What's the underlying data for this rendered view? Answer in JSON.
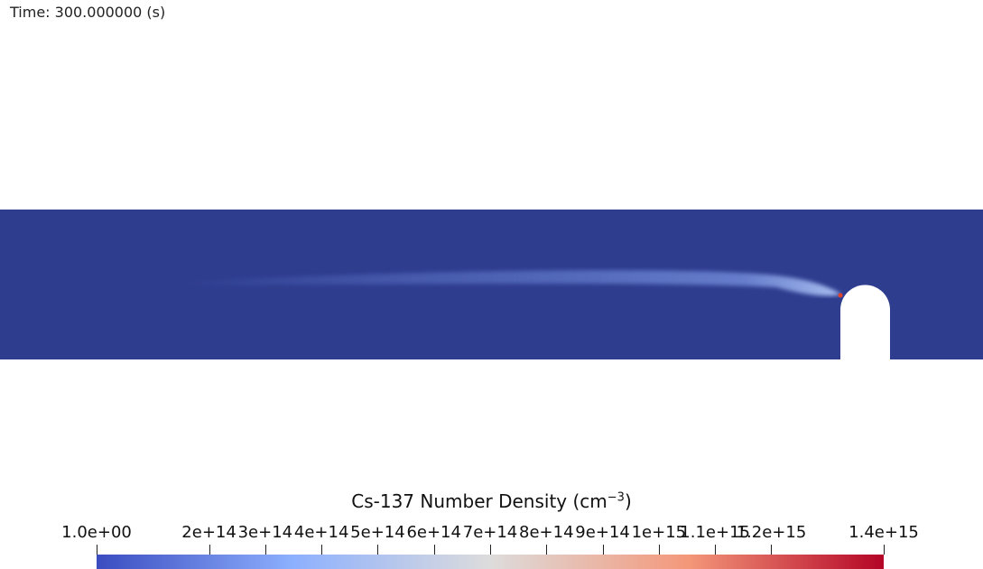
{
  "time_label": "Time: 300.000000 (s)",
  "field": {
    "background_color": "#2f3d8f",
    "plume_color": "#5a72c4",
    "source_color": "#e0432b",
    "obstacle_color": "#ffffff"
  },
  "colorbar": {
    "title_main": "Cs-137 Number Density (cm",
    "title_exp": "−3",
    "title_end": ")",
    "min": 1.0,
    "max": 1400000000000000.0,
    "colors": [
      "#3b4cc0",
      "#8db0fe",
      "#dddcdc",
      "#f4987a",
      "#b40426"
    ],
    "ticks": [
      {
        "label": "1.0e+00",
        "value": 1.0
      },
      {
        "label": "2e+14",
        "value": 200000000000000.0
      },
      {
        "label": "3e+14",
        "value": 300000000000000.0
      },
      {
        "label": "4e+14",
        "value": 400000000000000.0
      },
      {
        "label": "5e+14",
        "value": 500000000000000.0
      },
      {
        "label": "6e+14",
        "value": 600000000000000.0
      },
      {
        "label": "7e+14",
        "value": 700000000000000.0
      },
      {
        "label": "8e+14",
        "value": 800000000000000.0
      },
      {
        "label": "9e+14",
        "value": 900000000000000.0
      },
      {
        "label": "1e+15",
        "value": 1000000000000000.0
      },
      {
        "label": "1.1e+15",
        "value": 1100000000000000.0
      },
      {
        "label": "1.2e+15",
        "value": 1200000000000000.0
      },
      {
        "label": "1.4e+15",
        "value": 1400000000000000.0
      }
    ]
  }
}
